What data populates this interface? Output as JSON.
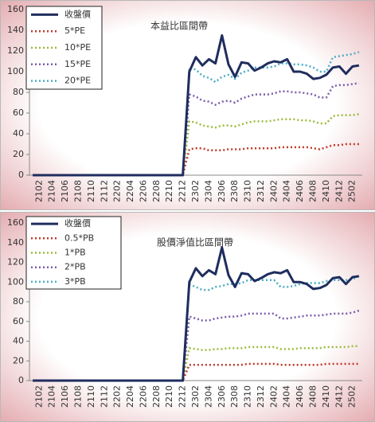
{
  "chart_data": [
    {
      "type": "line",
      "title": "本益比區間帶",
      "categories": [
        null,
        "2102",
        null,
        "2104",
        null,
        "2106",
        null,
        "2108",
        null,
        "2110",
        null,
        "2112",
        null,
        "2202",
        null,
        "2204",
        null,
        "2206",
        null,
        "2208",
        null,
        "2210",
        null,
        "2212",
        null,
        "2302",
        null,
        "2304",
        null,
        "2306",
        null,
        "2308",
        null,
        "2310",
        null,
        "2312",
        null,
        "2402",
        null,
        "2404",
        null,
        "2406",
        null,
        "2408",
        null,
        "2410",
        null,
        "2412",
        null,
        "2502",
        null
      ],
      "series": [
        {
          "name": "收盤價",
          "color": "#1f2d5e",
          "values": [
            0,
            0,
            0,
            0,
            0,
            0,
            0,
            0,
            0,
            0,
            0,
            0,
            0,
            0,
            0,
            0,
            0,
            0,
            0,
            0,
            0,
            0,
            0,
            0,
            100,
            114,
            106,
            112,
            108,
            135,
            107,
            95,
            109,
            108,
            101,
            104,
            108,
            110,
            109,
            112,
            100,
            100,
            98,
            93,
            94,
            97,
            104,
            105,
            98,
            105,
            106
          ]
        },
        {
          "name": "5*PE",
          "color": "#c0392b",
          "values": [
            0,
            0,
            0,
            0,
            0,
            0,
            0,
            0,
            0,
            0,
            0,
            0,
            0,
            0,
            0,
            0,
            0,
            0,
            0,
            0,
            0,
            0,
            0,
            0,
            25,
            26,
            26,
            24,
            24,
            24,
            25,
            25,
            25,
            26,
            26,
            26,
            26,
            26,
            27,
            27,
            27,
            27,
            27,
            26,
            25,
            27,
            29,
            29,
            30,
            30,
            30
          ]
        },
        {
          "name": "10*PE",
          "color": "#9bbb3b",
          "values": [
            0,
            0,
            0,
            0,
            0,
            0,
            0,
            0,
            0,
            0,
            0,
            0,
            0,
            0,
            0,
            0,
            0,
            0,
            0,
            0,
            0,
            0,
            0,
            0,
            52,
            51,
            48,
            47,
            46,
            48,
            48,
            47,
            49,
            51,
            52,
            52,
            52,
            53,
            54,
            54,
            54,
            53,
            53,
            52,
            50,
            50,
            57,
            58,
            58,
            58,
            59
          ]
        },
        {
          "name": "15*PE",
          "color": "#7a5ca8",
          "values": [
            0,
            0,
            0,
            0,
            0,
            0,
            0,
            0,
            0,
            0,
            0,
            0,
            0,
            0,
            0,
            0,
            0,
            0,
            0,
            0,
            0,
            0,
            0,
            0,
            78,
            76,
            72,
            71,
            68,
            71,
            72,
            70,
            74,
            76,
            78,
            78,
            78,
            79,
            81,
            81,
            80,
            80,
            79,
            78,
            75,
            75,
            86,
            87,
            87,
            88,
            89
          ]
        },
        {
          "name": "20*PE",
          "color": "#4bacc6",
          "values": [
            0,
            0,
            0,
            0,
            0,
            0,
            0,
            0,
            0,
            0,
            0,
            0,
            0,
            0,
            0,
            0,
            0,
            0,
            0,
            0,
            0,
            0,
            0,
            0,
            104,
            102,
            96,
            94,
            90,
            95,
            97,
            93,
            99,
            101,
            104,
            104,
            104,
            105,
            108,
            108,
            107,
            107,
            106,
            104,
            100,
            100,
            114,
            115,
            116,
            117,
            119
          ]
        }
      ],
      "ylim": [
        0,
        160
      ],
      "yticks": [
        0,
        20,
        40,
        60,
        80,
        100,
        120,
        140,
        160
      ]
    },
    {
      "type": "line",
      "title": "股價淨值比區間帶",
      "categories": [
        null,
        "2102",
        null,
        "2104",
        null,
        "2106",
        null,
        "2108",
        null,
        "2110",
        null,
        "2112",
        null,
        "2202",
        null,
        "2204",
        null,
        "2206",
        null,
        "2208",
        null,
        "2210",
        null,
        "2212",
        null,
        "2302",
        null,
        "2304",
        null,
        "2306",
        null,
        "2308",
        null,
        "2310",
        null,
        "2312",
        null,
        "2402",
        null,
        "2404",
        null,
        "2406",
        null,
        "2408",
        null,
        "2410",
        null,
        "2412",
        null,
        "2502",
        null
      ],
      "series": [
        {
          "name": "收盤價",
          "color": "#1f2d5e",
          "values": [
            0,
            0,
            0,
            0,
            0,
            0,
            0,
            0,
            0,
            0,
            0,
            0,
            0,
            0,
            0,
            0,
            0,
            0,
            0,
            0,
            0,
            0,
            0,
            0,
            100,
            114,
            106,
            112,
            108,
            135,
            107,
            95,
            109,
            108,
            101,
            104,
            108,
            110,
            109,
            112,
            100,
            100,
            98,
            93,
            94,
            97,
            104,
            105,
            98,
            105,
            106
          ]
        },
        {
          "name": "0.5*PB",
          "color": "#c0392b",
          "values": [
            0,
            0,
            0,
            0,
            0,
            0,
            0,
            0,
            0,
            0,
            0,
            0,
            0,
            0,
            0,
            0,
            0,
            0,
            0,
            0,
            0,
            0,
            0,
            0,
            16,
            16,
            16,
            16,
            16,
            16,
            16,
            16,
            16,
            17,
            17,
            17,
            17,
            17,
            16,
            16,
            16,
            16,
            16,
            16,
            16,
            17,
            17,
            17,
            17,
            17,
            17
          ]
        },
        {
          "name": "1*PB",
          "color": "#9bbb3b",
          "values": [
            0,
            0,
            0,
            0,
            0,
            0,
            0,
            0,
            0,
            0,
            0,
            0,
            0,
            0,
            0,
            0,
            0,
            0,
            0,
            0,
            0,
            0,
            0,
            0,
            33,
            32,
            31,
            31,
            32,
            32,
            33,
            33,
            33,
            34,
            34,
            34,
            34,
            34,
            32,
            32,
            32,
            33,
            33,
            33,
            33,
            34,
            34,
            34,
            34,
            35,
            35
          ]
        },
        {
          "name": "2*PB",
          "color": "#7a5ca8",
          "values": [
            0,
            0,
            0,
            0,
            0,
            0,
            0,
            0,
            0,
            0,
            0,
            0,
            0,
            0,
            0,
            0,
            0,
            0,
            0,
            0,
            0,
            0,
            0,
            0,
            65,
            63,
            61,
            61,
            63,
            64,
            65,
            65,
            66,
            68,
            68,
            68,
            68,
            68,
            63,
            63,
            64,
            65,
            66,
            66,
            66,
            67,
            68,
            68,
            68,
            69,
            71
          ]
        },
        {
          "name": "3*PB",
          "color": "#4bacc6",
          "values": [
            0,
            0,
            0,
            0,
            0,
            0,
            0,
            0,
            0,
            0,
            0,
            0,
            0,
            0,
            0,
            0,
            0,
            0,
            0,
            0,
            0,
            0,
            0,
            0,
            98,
            95,
            92,
            92,
            95,
            96,
            98,
            98,
            99,
            102,
            102,
            102,
            102,
            102,
            95,
            95,
            96,
            98,
            99,
            99,
            99,
            101,
            102,
            102,
            102,
            103,
            106
          ]
        }
      ],
      "ylim": [
        0,
        160
      ],
      "yticks": [
        0,
        20,
        40,
        60,
        80,
        100,
        120,
        140,
        160
      ]
    }
  ]
}
